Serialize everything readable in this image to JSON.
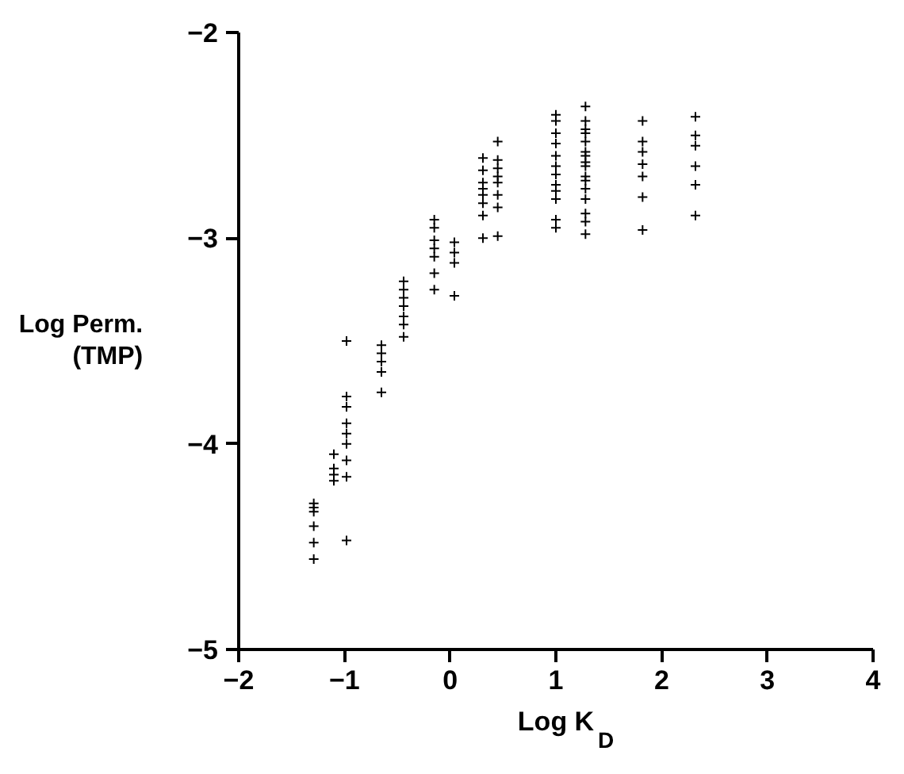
{
  "chart_data": {
    "type": "scatter",
    "xlabel": "Log K$_{D}$",
    "ylabel": "Log Perm.\n(TMP)",
    "marker": "cross",
    "color": "#000000",
    "grid": false,
    "xlim": [
      -2,
      4
    ],
    "xticks": [
      -2,
      -1,
      0,
      1,
      2,
      3,
      4
    ],
    "ylim": [
      -5,
      -2
    ],
    "yticks": [
      -5,
      -4,
      -3,
      -2
    ],
    "x": [
      -1.29,
      -1.29,
      -1.29,
      -1.29,
      -1.29,
      -1.29,
      -1.1,
      -1.1,
      -1.1,
      -1.1,
      -0.98,
      -0.98,
      -0.98,
      -0.98,
      -0.98,
      -0.98,
      -0.98,
      -0.98,
      -0.98,
      -0.65,
      -0.65,
      -0.65,
      -0.65,
      -0.65,
      -0.44,
      -0.44,
      -0.44,
      -0.44,
      -0.44,
      -0.44,
      -0.44,
      -0.15,
      -0.15,
      -0.15,
      -0.15,
      -0.15,
      -0.15,
      -0.15,
      0.04,
      0.04,
      0.04,
      0.04,
      0.31,
      0.31,
      0.31,
      0.31,
      0.31,
      0.31,
      0.31,
      0.31,
      0.45,
      0.45,
      0.45,
      0.45,
      0.45,
      0.45,
      0.45,
      0.45,
      1.0,
      1.0,
      1.0,
      1.0,
      1.0,
      1.0,
      1.0,
      1.0,
      1.0,
      1.0,
      1.0,
      1.0,
      1.28,
      1.28,
      1.28,
      1.28,
      1.28,
      1.28,
      1.28,
      1.28,
      1.28,
      1.28,
      1.28,
      1.28,
      1.28,
      1.28,
      1.28,
      1.28,
      1.82,
      1.82,
      1.82,
      1.82,
      1.82,
      1.82,
      1.82,
      2.32,
      2.32,
      2.32,
      2.32,
      2.32,
      2.32
    ],
    "values": [
      -4.29,
      -4.31,
      -4.33,
      -4.4,
      -4.48,
      -4.56,
      -4.05,
      -4.12,
      -4.15,
      -4.18,
      -3.5,
      -3.77,
      -3.82,
      -3.9,
      -3.95,
      -4.0,
      -4.08,
      -4.16,
      -4.47,
      -3.52,
      -3.56,
      -3.6,
      -3.65,
      -3.75,
      -3.21,
      -3.25,
      -3.29,
      -3.33,
      -3.38,
      -3.42,
      -3.48,
      -2.91,
      -2.95,
      -3.01,
      -3.05,
      -3.09,
      -3.17,
      -3.25,
      -3.02,
      -3.07,
      -3.12,
      -3.28,
      -2.61,
      -2.67,
      -2.73,
      -2.76,
      -2.79,
      -2.83,
      -2.89,
      -3.0,
      -2.53,
      -2.62,
      -2.66,
      -2.7,
      -2.73,
      -2.79,
      -2.85,
      -2.99,
      -2.4,
      -2.43,
      -2.49,
      -2.54,
      -2.6,
      -2.65,
      -2.69,
      -2.74,
      -2.77,
      -2.81,
      -2.91,
      -2.95,
      -2.36,
      -2.43,
      -2.47,
      -2.49,
      -2.53,
      -2.58,
      -2.6,
      -2.63,
      -2.65,
      -2.7,
      -2.72,
      -2.76,
      -2.81,
      -2.88,
      -2.92,
      -2.98,
      -2.43,
      -2.53,
      -2.58,
      -2.64,
      -2.7,
      -2.8,
      -2.96,
      -2.41,
      -2.5,
      -2.55,
      -2.65,
      -2.74,
      -2.89
    ]
  }
}
